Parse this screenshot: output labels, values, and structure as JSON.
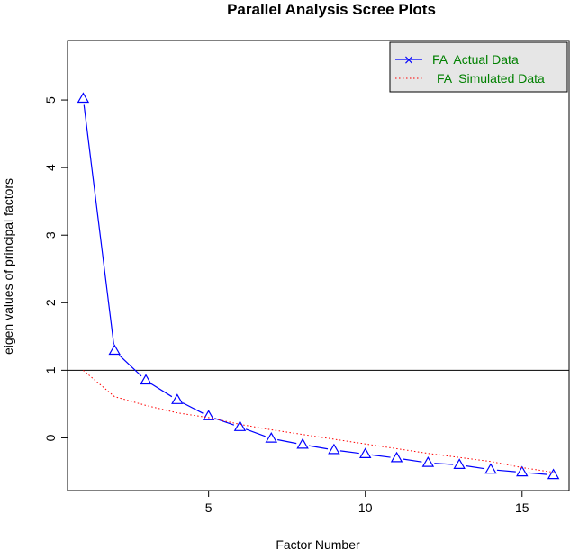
{
  "chart_data": {
    "type": "line",
    "title": "Parallel Analysis Scree Plots",
    "xlabel": "Factor Number",
    "ylabel": "eigen values of principal factors",
    "xlim": [
      0.5,
      16.5
    ],
    "ylim": [
      -0.78,
      5.88
    ],
    "x_ticks": [
      5,
      10,
      15
    ],
    "y_ticks": [
      0,
      1,
      2,
      3,
      4,
      5
    ],
    "x": [
      1,
      2,
      3,
      4,
      5,
      6,
      7,
      8,
      9,
      10,
      11,
      12,
      13,
      14,
      15,
      16
    ],
    "series": [
      {
        "name": "FA  Actual Data",
        "color": "#0000ff",
        "line": "solid",
        "marker": "triangle",
        "values": [
          5.02,
          1.29,
          0.85,
          0.56,
          0.32,
          0.16,
          -0.01,
          -0.1,
          -0.18,
          -0.24,
          -0.3,
          -0.37,
          -0.4,
          -0.47,
          -0.51,
          -0.55
        ]
      },
      {
        "name": "FA  Simulated Data",
        "color": "#ff0000",
        "line": "dotted",
        "values": [
          1.0,
          0.61,
          0.48,
          0.37,
          0.3,
          0.2,
          0.12,
          0.05,
          -0.02,
          -0.09,
          -0.16,
          -0.23,
          -0.29,
          -0.35,
          -0.44,
          -0.51
        ]
      }
    ],
    "reference_line": {
      "y": 1,
      "color": "#000000"
    },
    "legend": {
      "placement": "top-right",
      "background": "#e6e6e6",
      "text_color": "#008000",
      "actual_marker_glyph": "×"
    },
    "grid": false
  }
}
